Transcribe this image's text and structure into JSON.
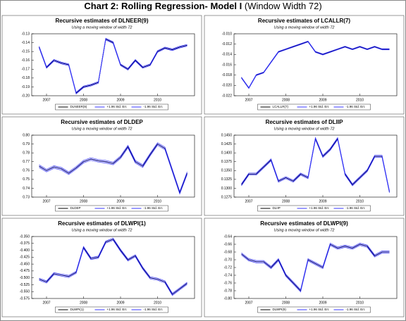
{
  "header": {
    "title": "Chart 2: Rolling Regression- Model I",
    "note": "(Window Width 72)"
  },
  "chart_data": [
    {
      "type": "line",
      "title": "Recursive estimates of DLNEER(9)",
      "subtitle": "Using a moving window of width 72",
      "legend": "bottom",
      "x": [
        2006.8,
        2007,
        2007.2,
        2007.4,
        2007.6,
        2007.8,
        2008,
        2008.2,
        2008.4,
        2008.6,
        2008.8,
        2009,
        2009.2,
        2009.4,
        2009.6,
        2009.8,
        2010,
        2010.2,
        2010.4,
        2010.6,
        2010.8
      ],
      "xlim": [
        2006.6,
        2011.0
      ],
      "xticks": [
        2007,
        2008,
        2009,
        2010
      ],
      "ylim": [
        -0.2,
        -0.13
      ],
      "yticks": [
        -0.13,
        -0.14,
        -0.15,
        -0.16,
        -0.17,
        -0.18,
        -0.19,
        {
          "value": -0.2,
          "label": "-0.20"
        }
      ],
      "series": [
        {
          "name": "DLNEER(9)",
          "color": "#000080",
          "values": [
            -0.145,
            -0.168,
            -0.16,
            -0.163,
            -0.165,
            -0.197,
            -0.19,
            -0.188,
            -0.185,
            -0.136,
            -0.14,
            -0.165,
            -0.17,
            -0.16,
            -0.168,
            -0.165,
            -0.15,
            -0.146,
            -0.148,
            -0.145,
            -0.143
          ]
        },
        {
          "name": "+1.96 Std. Err.",
          "color": "#3a3aff",
          "values": [
            -0.144,
            -0.167,
            -0.159,
            -0.162,
            -0.164,
            -0.196,
            -0.189,
            -0.187,
            -0.184,
            -0.135,
            -0.139,
            -0.164,
            -0.169,
            -0.159,
            -0.167,
            -0.164,
            -0.149,
            -0.145,
            -0.147,
            -0.144,
            -0.142
          ]
        },
        {
          "name": "-1.96 Std. Err.",
          "color": "#3a3aff",
          "values": [
            -0.146,
            -0.169,
            -0.161,
            -0.164,
            -0.166,
            -0.198,
            -0.191,
            -0.189,
            -0.186,
            -0.137,
            -0.141,
            -0.166,
            -0.171,
            -0.161,
            -0.169,
            -0.166,
            -0.151,
            -0.147,
            -0.149,
            -0.146,
            -0.144
          ]
        }
      ]
    },
    {
      "type": "line",
      "title": "Recursive estimates of LCALLR(7)",
      "subtitle": "Using a moving window of width 72",
      "legend": "bottom",
      "x": [
        2006.8,
        2007,
        2007.2,
        2007.4,
        2007.6,
        2007.8,
        2008,
        2008.2,
        2008.4,
        2008.6,
        2008.8,
        2009,
        2009.2,
        2009.4,
        2009.6,
        2009.8,
        2010,
        2010.2,
        2010.4,
        2010.6,
        2010.8
      ],
      "xlim": [
        2006.6,
        2011.0
      ],
      "xticks": [
        2007,
        2008,
        2009,
        2010
      ],
      "ylim": [
        -0.022,
        -0.01
      ],
      "yticks": [
        {
          "value": -0.01,
          "label": "-0.010"
        },
        -0.012,
        -0.014,
        -0.016,
        -0.018,
        {
          "value": -0.02,
          "label": "-0.020"
        },
        -0.022
      ],
      "series": [
        {
          "name": "LCALLR(7)",
          "color": "#000080",
          "values": [
            -0.0185,
            -0.0205,
            -0.018,
            -0.0175,
            -0.0155,
            -0.0135,
            -0.013,
            -0.0125,
            -0.012,
            -0.0115,
            -0.0135,
            -0.014,
            -0.0135,
            -0.013,
            -0.0125,
            -0.013,
            -0.0125,
            -0.013,
            -0.0125,
            -0.013,
            -0.013
          ]
        },
        {
          "name": "+1.96 Std. Err.",
          "color": "#3a3aff",
          "values": [
            -0.0184,
            -0.0204,
            -0.0179,
            -0.0174,
            -0.0154,
            -0.0134,
            -0.0129,
            -0.0124,
            -0.0119,
            -0.0114,
            -0.0134,
            -0.0139,
            -0.0134,
            -0.0129,
            -0.0124,
            -0.0129,
            -0.0124,
            -0.0129,
            -0.0124,
            -0.0129,
            -0.0129
          ]
        },
        {
          "name": "-1.96 Std. Err.",
          "color": "#3a3aff",
          "values": [
            -0.0186,
            -0.0206,
            -0.0181,
            -0.0176,
            -0.0156,
            -0.0136,
            -0.0131,
            -0.0126,
            -0.0121,
            -0.0116,
            -0.0136,
            -0.0141,
            -0.0136,
            -0.0131,
            -0.0126,
            -0.0131,
            -0.0126,
            -0.0131,
            -0.0126,
            -0.0131,
            -0.0131
          ]
        }
      ]
    },
    {
      "type": "line",
      "title": "Recursive estimates of DLDEP",
      "subtitle": "Using a moving window of width 72",
      "legend": "bottom",
      "x": [
        2006.8,
        2007,
        2007.2,
        2007.4,
        2007.6,
        2007.8,
        2008,
        2008.2,
        2008.4,
        2008.6,
        2008.8,
        2009,
        2009.2,
        2009.4,
        2009.6,
        2009.8,
        2010,
        2010.2,
        2010.4,
        2010.6,
        2010.8
      ],
      "xlim": [
        2006.6,
        2011.0
      ],
      "xticks": [
        2007,
        2008,
        2009,
        2010
      ],
      "ylim": [
        0.73,
        0.8
      ],
      "yticks": [
        {
          "value": 0.8,
          "label": "0.80"
        },
        0.79,
        0.78,
        0.77,
        0.76,
        0.75,
        0.74,
        0.73
      ],
      "series": [
        {
          "name": "DLDEP",
          "color": "#000080",
          "values": [
            0.765,
            0.76,
            0.764,
            0.762,
            0.757,
            0.763,
            0.77,
            0.773,
            0.771,
            0.77,
            0.768,
            0.775,
            0.787,
            0.77,
            0.765,
            0.778,
            0.79,
            0.785,
            0.76,
            0.735,
            0.757
          ]
        },
        {
          "name": "+1.96 Std. Err.",
          "color": "#3a3aff",
          "values": [
            0.7665,
            0.7615,
            0.7655,
            0.7635,
            0.7585,
            0.7645,
            0.7715,
            0.7745,
            0.7725,
            0.7715,
            0.7695,
            0.7765,
            0.7885,
            0.7715,
            0.7665,
            0.7795,
            0.7915,
            0.7865,
            0.7615,
            0.7365,
            0.7585
          ]
        },
        {
          "name": "-1.96 Std. Err.",
          "color": "#3a3aff",
          "values": [
            0.7635,
            0.7585,
            0.7625,
            0.7605,
            0.7555,
            0.7615,
            0.7685,
            0.7715,
            0.7695,
            0.7685,
            0.7665,
            0.7735,
            0.7855,
            0.7685,
            0.7635,
            0.7765,
            0.7885,
            0.7835,
            0.7585,
            0.7335,
            0.7555
          ]
        }
      ]
    },
    {
      "type": "line",
      "title": "Recursive estimates of DLIIP",
      "subtitle": "Using a moving window of width 72",
      "legend": "bottom",
      "x": [
        2006.8,
        2007,
        2007.2,
        2007.4,
        2007.6,
        2007.8,
        2008,
        2008.2,
        2008.4,
        2008.6,
        2008.8,
        2009,
        2009.2,
        2009.4,
        2009.6,
        2009.8,
        2010,
        2010.2,
        2010.4,
        2010.6,
        2010.8
      ],
      "xlim": [
        2006.6,
        2011.0
      ],
      "xticks": [
        2007,
        2008,
        2009,
        2010
      ],
      "ylim": [
        0.1275,
        0.145
      ],
      "yticks": [
        {
          "value": 0.145,
          "label": "0.1450"
        },
        0.1425,
        {
          "value": 0.14,
          "label": "0.1400"
        },
        0.1375,
        {
          "value": 0.135,
          "label": "0.1350"
        },
        0.1325,
        {
          "value": 0.13,
          "label": "0.1300"
        },
        0.1275
      ],
      "series": [
        {
          "name": "DLIIP",
          "color": "#000080",
          "values": [
            0.131,
            0.134,
            0.134,
            0.136,
            0.138,
            0.132,
            0.133,
            0.132,
            0.134,
            0.133,
            0.144,
            0.139,
            0.141,
            0.144,
            0.134,
            0.131,
            0.133,
            0.135,
            0.139,
            0.139,
            0.129
          ]
        },
        {
          "name": "+1.96 Std. Err.",
          "color": "#3a3aff",
          "values": [
            0.1313,
            0.1343,
            0.1343,
            0.1363,
            0.1383,
            0.1323,
            0.1333,
            0.1323,
            0.1343,
            0.1333,
            0.1443,
            0.1393,
            0.1413,
            0.1443,
            0.1343,
            0.1313,
            0.1333,
            0.1353,
            0.1393,
            0.1393,
            0.1293
          ]
        },
        {
          "name": "-1.96 Std. Err.",
          "color": "#3a3aff",
          "values": [
            0.1307,
            0.1337,
            0.1337,
            0.1357,
            0.1377,
            0.1317,
            0.1327,
            0.1317,
            0.1337,
            0.1327,
            0.1437,
            0.1387,
            0.1407,
            0.1437,
            0.1337,
            0.1307,
            0.1327,
            0.1347,
            0.1387,
            0.1387,
            0.1287
          ]
        }
      ]
    },
    {
      "type": "line",
      "title": "Recursive estimates of DLWPI(1)",
      "subtitle": "Using a moving window of width 72",
      "legend": "bottom",
      "x": [
        2006.8,
        2007,
        2007.2,
        2007.4,
        2007.6,
        2007.8,
        2008,
        2008.2,
        2008.4,
        2008.6,
        2008.8,
        2009,
        2009.2,
        2009.4,
        2009.6,
        2009.8,
        2010,
        2010.2,
        2010.4,
        2010.6,
        2010.8
      ],
      "xlim": [
        2006.6,
        2011.0
      ],
      "xticks": [
        2007,
        2008,
        2009,
        2010
      ],
      "ylim": [
        -0.575,
        -0.35
      ],
      "yticks": [
        {
          "value": -0.35,
          "label": "-0.350"
        },
        -0.375,
        {
          "value": -0.4,
          "label": "-0.400"
        },
        -0.425,
        {
          "value": -0.45,
          "label": "-0.450"
        },
        -0.475,
        {
          "value": -0.5,
          "label": "-0.500"
        },
        -0.525,
        {
          "value": -0.55,
          "label": "-0.550"
        },
        -0.575
      ],
      "series": [
        {
          "name": "DLWPI(1)",
          "color": "#000080",
          "values": [
            -0.505,
            -0.515,
            -0.485,
            -0.49,
            -0.495,
            -0.48,
            -0.39,
            -0.43,
            -0.425,
            -0.37,
            -0.36,
            -0.4,
            -0.435,
            -0.42,
            -0.465,
            -0.5,
            -0.505,
            -0.515,
            -0.56,
            -0.54,
            -0.52
          ]
        },
        {
          "name": "+1.96 Std. Err.",
          "color": "#3a3aff",
          "values": [
            -0.501,
            -0.511,
            -0.481,
            -0.486,
            -0.491,
            -0.476,
            -0.386,
            -0.426,
            -0.421,
            -0.366,
            -0.356,
            -0.396,
            -0.431,
            -0.416,
            -0.461,
            -0.496,
            -0.501,
            -0.511,
            -0.556,
            -0.536,
            -0.516
          ]
        },
        {
          "name": "-1.96 Std. Err.",
          "color": "#3a3aff",
          "values": [
            -0.509,
            -0.519,
            -0.489,
            -0.494,
            -0.499,
            -0.484,
            -0.394,
            -0.434,
            -0.429,
            -0.374,
            -0.364,
            -0.404,
            -0.439,
            -0.424,
            -0.469,
            -0.504,
            -0.509,
            -0.519,
            -0.564,
            -0.544,
            -0.524
          ]
        }
      ]
    },
    {
      "type": "line",
      "title": "Recursive estimates of DLWPI(9)",
      "subtitle": "Using a moving window of width 72",
      "legend": "bottom",
      "x": [
        2006.8,
        2007,
        2007.2,
        2007.4,
        2007.6,
        2007.8,
        2008,
        2008.2,
        2008.4,
        2008.6,
        2008.8,
        2009,
        2009.2,
        2009.4,
        2009.6,
        2009.8,
        2010,
        2010.2,
        2010.4,
        2010.6,
        2010.8
      ],
      "xlim": [
        2006.6,
        2011.0
      ],
      "xticks": [
        2007,
        2008,
        2009,
        2010
      ],
      "ylim": [
        -0.8,
        -0.64
      ],
      "yticks": [
        -0.64,
        -0.66,
        -0.68,
        {
          "value": -0.7,
          "label": "-0.70"
        },
        -0.72,
        -0.74,
        -0.76,
        -0.78,
        {
          "value": -0.8,
          "label": "-0.80"
        }
      ],
      "series": [
        {
          "name": "DLWPI(9)",
          "color": "#000080",
          "values": [
            -0.685,
            -0.7,
            -0.705,
            -0.705,
            -0.72,
            -0.7,
            -0.74,
            -0.76,
            -0.78,
            -0.7,
            -0.71,
            -0.72,
            -0.66,
            -0.67,
            -0.665,
            -0.67,
            -0.66,
            -0.665,
            -0.69,
            -0.68,
            -0.68
          ]
        },
        {
          "name": "+1.96 Std. Err.",
          "color": "#3a3aff",
          "values": [
            -0.682,
            -0.697,
            -0.702,
            -0.702,
            -0.717,
            -0.697,
            -0.737,
            -0.757,
            -0.777,
            -0.697,
            -0.707,
            -0.717,
            -0.657,
            -0.667,
            -0.662,
            -0.667,
            -0.657,
            -0.662,
            -0.687,
            -0.677,
            -0.677
          ]
        },
        {
          "name": "-1.96 Std. Err.",
          "color": "#3a3aff",
          "values": [
            -0.688,
            -0.703,
            -0.708,
            -0.708,
            -0.723,
            -0.703,
            -0.743,
            -0.763,
            -0.783,
            -0.703,
            -0.713,
            -0.723,
            -0.663,
            -0.673,
            -0.668,
            -0.673,
            -0.663,
            -0.668,
            -0.693,
            -0.683,
            -0.683
          ]
        }
      ]
    }
  ]
}
